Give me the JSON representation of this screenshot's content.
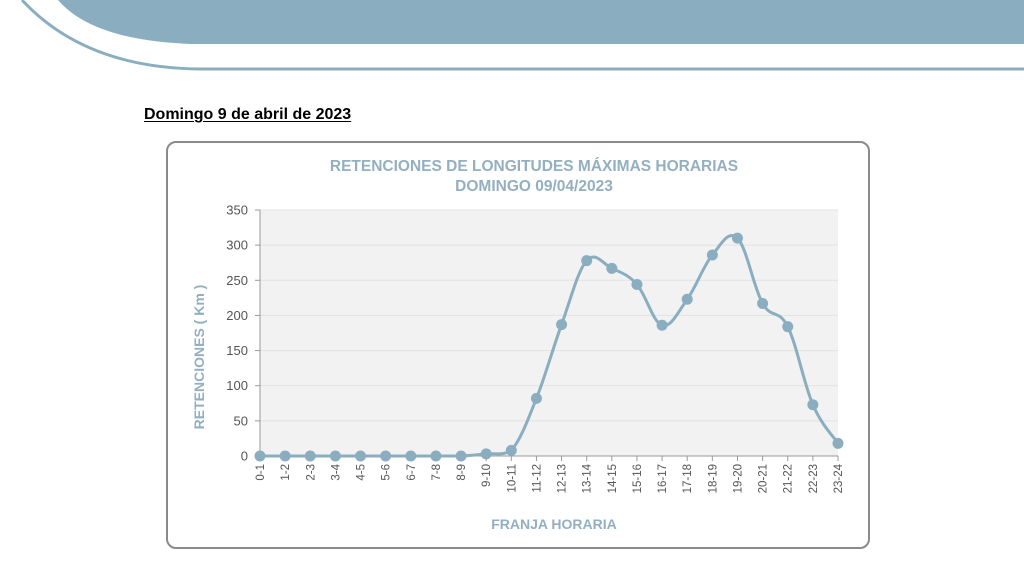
{
  "header": {
    "section_date": "Domingo 9 de abril de 2023",
    "accent_color": "#8aaec0"
  },
  "chart_data": {
    "type": "line",
    "title": "RETENCIONES DE LONGITUDES MÁXIMAS HORARIAS",
    "subtitle": "DOMINGO 09/04/2023",
    "xlabel": "FRANJA HORARIA",
    "ylabel": "RETENCIONES ( Km )",
    "categories": [
      "0-1",
      "1-2",
      "2-3",
      "3-4",
      "4-5",
      "5-6",
      "6-7",
      "7-8",
      "8-9",
      "9-10",
      "10-11",
      "11-12",
      "12-13",
      "13-14",
      "14-15",
      "15-16",
      "16-17",
      "17-18",
      "18-19",
      "19-20",
      "20-21",
      "21-22",
      "22-23",
      "23-24"
    ],
    "series": [
      {
        "values": [
          0,
          0,
          0,
          0,
          0,
          0,
          0,
          0,
          0,
          3,
          8,
          82,
          187,
          278,
          267,
          244,
          186,
          223,
          286,
          310,
          217,
          184,
          73,
          18
        ]
      }
    ],
    "ylim": [
      0,
      350
    ],
    "yticks": [
      0,
      50,
      100,
      150,
      200,
      250,
      300,
      350
    ],
    "grid": true,
    "legend": "none",
    "line_color": "#8aaec0",
    "plot_background": "#f2f2f2"
  }
}
